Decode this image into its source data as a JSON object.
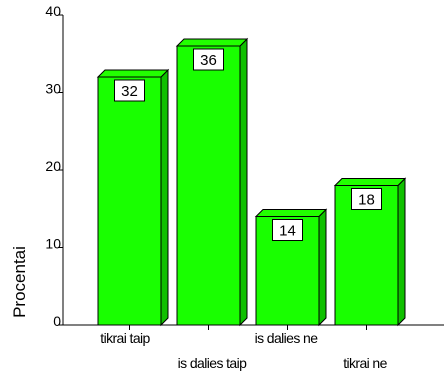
{
  "chart_data": {
    "type": "bar",
    "title": "",
    "xlabel": "",
    "ylabel": "Procentai",
    "ylim": [
      0,
      40
    ],
    "yticks": [
      0,
      10,
      20,
      30,
      40
    ],
    "categories": [
      "tikrai taip",
      "is dalies taip",
      "is dalies ne",
      "tikrai ne"
    ],
    "values": [
      32,
      36,
      14,
      18
    ],
    "data_labels": [
      "32",
      "36",
      "14",
      "18"
    ],
    "grid": false,
    "legend": "none",
    "style": "3d",
    "colors": {
      "bar_front": "#19ff00",
      "bar_top": "#22ff00",
      "bar_side": "#10c000",
      "outline": "#000000",
      "background": "#ffffff"
    }
  }
}
